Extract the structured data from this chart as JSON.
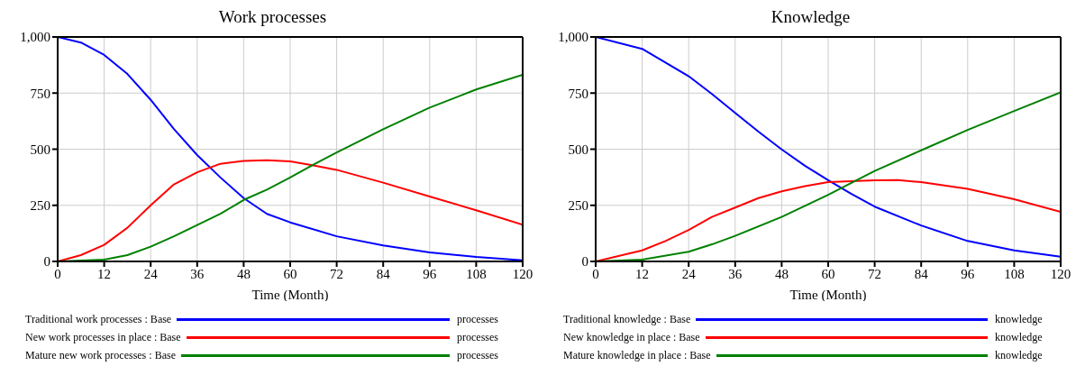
{
  "chart_data": [
    {
      "type": "line",
      "title": "Work processes",
      "xlabel": "Time (Month)",
      "xlim": [
        0,
        120
      ],
      "xticks": [
        0,
        12,
        24,
        36,
        48,
        60,
        72,
        84,
        96,
        108,
        120
      ],
      "ylim": [
        0,
        1000
      ],
      "yticks": [
        0,
        250,
        500,
        750,
        {
          "value": 1000,
          "label": "1,000"
        }
      ],
      "grid": true,
      "legend": "bottom",
      "marker": "none",
      "line_style": "solid",
      "annotations": [
        "processes",
        "processes",
        "processes"
      ],
      "series": [
        {
          "name": "Traditional work processes : Base",
          "color": "#0000ff",
          "x": [
            0,
            6,
            12,
            18,
            24,
            30,
            36,
            42,
            48,
            54,
            60,
            72,
            84,
            96,
            108,
            120
          ],
          "values": [
            1000,
            975,
            920,
            835,
            720,
            590,
            474,
            374,
            282,
            212,
            174,
            112,
            71,
            40,
            20,
            5
          ]
        },
        {
          "name": "New work processes in place : Base",
          "color": "#ff0000",
          "x": [
            0,
            6,
            12,
            18,
            24,
            30,
            36,
            42,
            48,
            54,
            60,
            66,
            72,
            84,
            96,
            108,
            120
          ],
          "values": [
            0,
            28,
            74,
            150,
            250,
            343,
            397,
            435,
            448,
            451,
            446,
            428,
            408,
            351,
            289,
            228,
            163
          ]
        },
        {
          "name": "Mature new work processes : Base",
          "color": "#008000",
          "x": [
            0,
            12,
            18,
            24,
            30,
            36,
            42,
            48,
            54,
            60,
            66,
            72,
            84,
            96,
            108,
            120
          ],
          "values": [
            0,
            8,
            28,
            66,
            112,
            162,
            212,
            274,
            320,
            374,
            431,
            485,
            589,
            685,
            766,
            832
          ]
        }
      ]
    },
    {
      "type": "line",
      "title": "Knowledge",
      "xlabel": "Time (Month)",
      "xlim": [
        0,
        120
      ],
      "xticks": [
        0,
        12,
        24,
        36,
        48,
        60,
        72,
        84,
        96,
        108,
        120
      ],
      "ylim": [
        0,
        1000
      ],
      "yticks": [
        0,
        250,
        500,
        750,
        {
          "value": 1000,
          "label": "1,000"
        }
      ],
      "grid": true,
      "legend": "bottom",
      "marker": "none",
      "line_style": "solid",
      "annotations": [
        "knowledge",
        "knowledge",
        "knowledge"
      ],
      "series": [
        {
          "name": "Traditional knowledge : Base",
          "color": "#0000ff",
          "x": [
            0,
            12,
            24,
            30,
            36,
            42,
            48,
            54,
            60,
            66,
            72,
            84,
            96,
            108,
            120
          ],
          "values": [
            1000,
            947,
            825,
            746,
            662,
            578,
            499,
            426,
            362,
            301,
            244,
            160,
            91,
            49,
            21
          ]
        },
        {
          "name": "New knowledge in place : Base",
          "color": "#ff0000",
          "x": [
            0,
            12,
            18,
            24,
            30,
            36,
            42,
            48,
            54,
            60,
            72,
            78,
            84,
            96,
            108,
            120
          ],
          "values": [
            0,
            49,
            91,
            140,
            198,
            240,
            282,
            312,
            335,
            353,
            361,
            362,
            353,
            323,
            277,
            221
          ]
        },
        {
          "name": "Mature knowledge in place : Base",
          "color": "#008000",
          "x": [
            0,
            12,
            24,
            30,
            36,
            48,
            60,
            66,
            72,
            84,
            96,
            108,
            120
          ],
          "values": [
            0,
            8,
            43,
            76,
            114,
            198,
            297,
            350,
            403,
            495,
            586,
            670,
            753
          ]
        }
      ]
    }
  ]
}
